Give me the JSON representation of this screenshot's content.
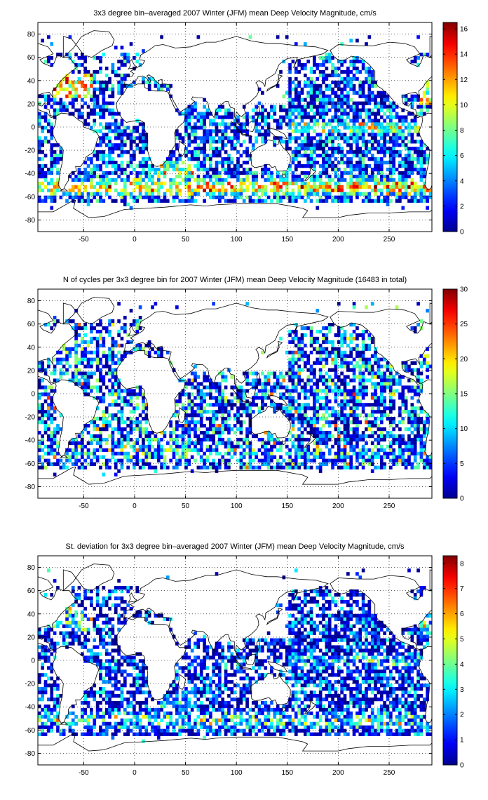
{
  "chart_data": [
    {
      "type": "heatmap",
      "title": "3x3 degree bin–averaged 2007 Winter (JFM) mean Deep Velocity Magnitude, cm/s",
      "xlim": [
        -95,
        292
      ],
      "ylim": [
        -90,
        90
      ],
      "xticks": [
        -50,
        0,
        50,
        100,
        150,
        200,
        250
      ],
      "yticks": [
        -80,
        -60,
        -40,
        -20,
        0,
        20,
        40,
        60,
        80
      ],
      "grid": true,
      "colormap": "jet",
      "colorbar": {
        "min": 0,
        "max": 16.5,
        "ticks": [
          0,
          2,
          4,
          6,
          8,
          10,
          12,
          14,
          16
        ]
      },
      "bin_size_deg": 3,
      "profile": "velocity"
    },
    {
      "type": "heatmap",
      "title": "N of cycles per 3x3 degree bin for 2007 Winter (JFM) mean Deep Velocity Magnitude (16483 in total)",
      "xlim": [
        -95,
        292
      ],
      "ylim": [
        -90,
        90
      ],
      "xticks": [
        -50,
        0,
        50,
        100,
        150,
        200,
        250
      ],
      "yticks": [
        -80,
        -60,
        -40,
        -20,
        0,
        20,
        40,
        60,
        80
      ],
      "grid": true,
      "colormap": "jet",
      "colorbar": {
        "min": 0,
        "max": 30,
        "ticks": [
          0,
          5,
          10,
          15,
          20,
          25,
          30
        ]
      },
      "bin_size_deg": 3,
      "profile": "count"
    },
    {
      "type": "heatmap",
      "title": "St. deviation for 3x3 degree bin–averaged 2007 Winter (JFM) mean Deep Velocity Magnitude, cm/s",
      "xlim": [
        -95,
        292
      ],
      "ylim": [
        -90,
        90
      ],
      "xticks": [
        -50,
        0,
        50,
        100,
        150,
        200,
        250
      ],
      "yticks": [
        -80,
        -60,
        -40,
        -20,
        0,
        20,
        40,
        60,
        80
      ],
      "grid": true,
      "colormap": "jet",
      "colorbar": {
        "min": 0,
        "max": 8.3,
        "ticks": [
          0,
          1,
          2,
          3,
          4,
          5,
          6,
          7,
          8
        ]
      },
      "bin_size_deg": 3,
      "profile": "stdev"
    }
  ],
  "colors": {
    "jet": [
      "#00008f",
      "#0000ff",
      "#00ffff",
      "#ffff00",
      "#ff0000",
      "#800000"
    ],
    "coast": "#000000",
    "grid": "#000000"
  }
}
